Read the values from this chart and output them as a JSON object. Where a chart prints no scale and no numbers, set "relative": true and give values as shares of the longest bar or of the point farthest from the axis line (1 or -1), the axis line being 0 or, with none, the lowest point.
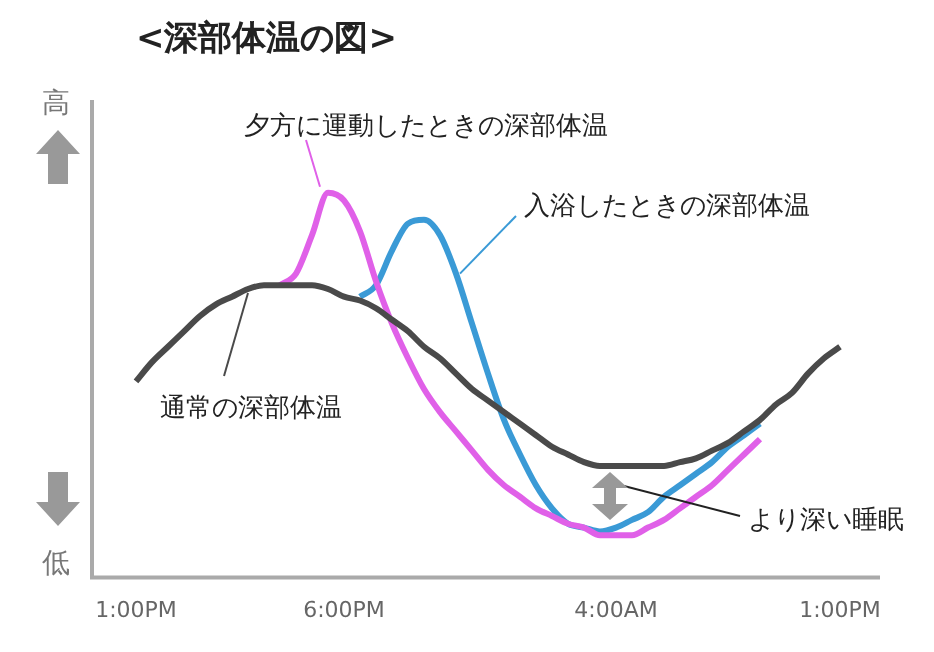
{
  "chart_data": {
    "type": "line",
    "title": "<深部体温の図>",
    "relative": true,
    "marker": "none",
    "grid": false,
    "categories": [
      "1:00PM",
      null,
      null,
      null,
      null,
      null,
      null,
      null,
      null,
      null,
      null,
      null,
      null,
      "6:00PM",
      null,
      null,
      null,
      null,
      null,
      null,
      null,
      null,
      null,
      null,
      null,
      null,
      null,
      null,
      null,
      null,
      "4:00AM",
      null,
      null,
      null,
      null,
      null,
      null,
      null,
      null,
      null,
      null,
      null,
      null,
      null,
      "1:00PM"
    ],
    "series": [
      {
        "name": "通常の深部体温",
        "color": "#4a4a4a",
        "values": [
          0.51,
          0.56,
          0.6,
          0.64,
          0.68,
          0.71,
          0.73,
          0.75,
          0.76,
          0.76,
          0.76,
          0.76,
          0.75,
          0.73,
          0.72,
          0.7,
          0.67,
          0.64,
          0.6,
          0.57,
          0.53,
          0.49,
          0.46,
          0.43,
          0.4,
          0.37,
          0.34,
          0.32,
          0.3,
          0.29,
          0.29,
          0.29,
          0.29,
          0.29,
          0.3,
          0.31,
          0.33,
          0.35,
          0.38,
          0.41,
          0.45,
          0.48,
          0.53,
          0.57,
          0.6
        ]
      },
      {
        "name": "夕方に運動したときの深部体温",
        "color": "#e060e8",
        "values": [
          null,
          null,
          null,
          null,
          null,
          null,
          null,
          null,
          null,
          0.76,
          0.79,
          0.89,
          1.0,
          0.98,
          0.9,
          0.77,
          0.66,
          0.57,
          0.49,
          0.43,
          0.38,
          0.33,
          0.28,
          0.24,
          0.21,
          0.18,
          0.16,
          0.14,
          0.13,
          0.11,
          0.11,
          0.11,
          0.13,
          0.15,
          0.18,
          0.21,
          0.24,
          0.28,
          0.32,
          0.36,
          null,
          null,
          null,
          null,
          null
        ]
      },
      {
        "name": "入浴したときの深部体温",
        "color": "#3a9ad6",
        "values": [
          null,
          null,
          null,
          null,
          null,
          null,
          null,
          null,
          null,
          null,
          null,
          null,
          null,
          null,
          0.73,
          0.76,
          0.85,
          0.92,
          0.93,
          0.89,
          0.79,
          0.66,
          0.53,
          0.41,
          0.32,
          0.24,
          0.18,
          0.14,
          0.13,
          0.12,
          0.13,
          0.15,
          0.17,
          0.21,
          0.24,
          0.27,
          0.3,
          0.34,
          0.37,
          0.4,
          null,
          null,
          null,
          null,
          null
        ]
      }
    ],
    "annotations": [
      "高",
      "低",
      "より深い睡眠"
    ]
  }
}
